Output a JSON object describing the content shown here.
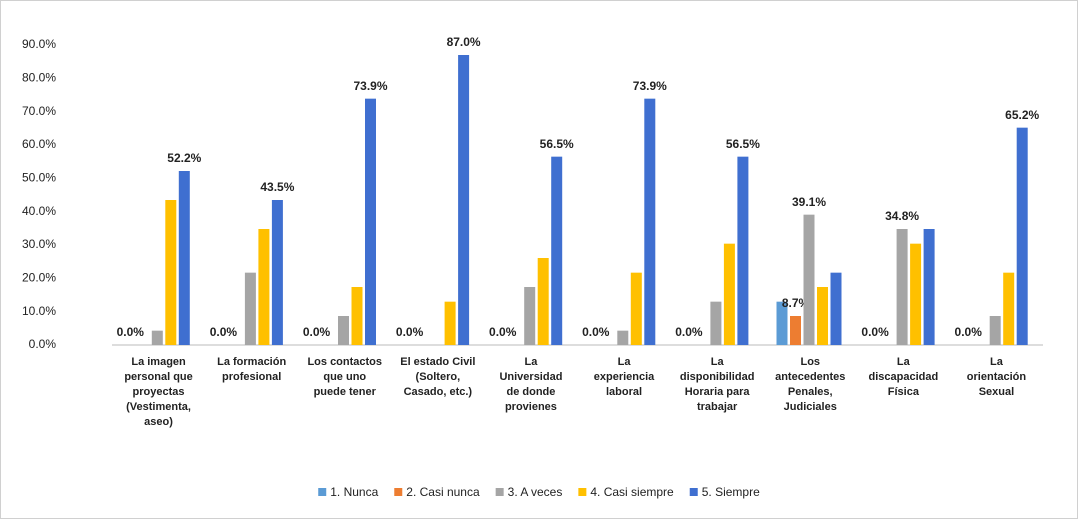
{
  "chart_data": {
    "type": "bar",
    "categories": [
      "La imagen\npersonal que\nproyectas\n(Vestimenta,\naseo)",
      "La formación\nprofesional",
      "Los contactos\nque uno\npuede tener",
      "El estado Civil\n(Soltero,\nCasado, etc.)",
      "La\nUniversidad\nde donde\nprovienes",
      "La\nexperiencia\nlaboral",
      "La\ndisponibilidad\nHoraria para\ntrabajar",
      "Los\nantecedentes\nPenales,\nJudiciales",
      "La\ndiscapacidad\nFísica",
      "La\norientación\nSexual"
    ],
    "series": [
      {
        "name": "1. Nunca",
        "color": "#5b9bd5",
        "values": [
          0,
          0,
          0,
          0,
          0,
          0,
          0,
          13.0,
          0,
          0
        ],
        "value_labels": [
          "0.0%",
          "0.0%",
          "0.0%",
          "0.0%",
          "0.0%",
          "0.0%",
          "0.0%",
          null,
          "0.0%",
          "0.0%"
        ]
      },
      {
        "name": "2. Casi nunca",
        "color": "#ed7d31",
        "values": [
          0,
          0,
          0,
          0,
          0,
          0,
          0,
          8.7,
          0,
          0
        ],
        "value_labels": [
          null,
          null,
          null,
          null,
          null,
          null,
          null,
          "8.7%",
          null,
          null
        ]
      },
      {
        "name": "3. A veces",
        "color": "#a5a5a5",
        "values": [
          4.3,
          21.7,
          8.7,
          0,
          17.4,
          4.3,
          13.0,
          39.1,
          34.8,
          8.7
        ],
        "value_labels": [
          null,
          null,
          null,
          null,
          null,
          null,
          null,
          "39.1%",
          "34.8%",
          null
        ]
      },
      {
        "name": "4. Casi siempre",
        "color": "#ffc000",
        "values": [
          43.5,
          34.8,
          17.4,
          13.0,
          26.1,
          21.7,
          30.4,
          17.4,
          30.4,
          21.7
        ]
      },
      {
        "name": "5. Siempre",
        "color": "#3f6fd0",
        "values": [
          52.2,
          43.5,
          73.9,
          87.0,
          56.5,
          73.9,
          56.5,
          21.7,
          34.8,
          65.2
        ],
        "value_labels": [
          "52.2%",
          "43.5%",
          "73.9%",
          "87.0%",
          "56.5%",
          "73.9%",
          "56.5%",
          null,
          null,
          "65.2%"
        ]
      }
    ],
    "ylim": [
      0,
      90
    ],
    "yticks": [
      {
        "value": 0,
        "label": "0.0%"
      },
      {
        "value": 10,
        "label": "10.0%"
      },
      {
        "value": 20,
        "label": "20.0%"
      },
      {
        "value": 30,
        "label": "30.0%"
      },
      {
        "value": 40,
        "label": "40.0%"
      },
      {
        "value": 50,
        "label": "50.0%"
      },
      {
        "value": 60,
        "label": "60.0%"
      },
      {
        "value": 70,
        "label": "70.0%"
      },
      {
        "value": 80,
        "label": "80.0%"
      },
      {
        "value": 90,
        "label": "90.0%"
      }
    ],
    "grid": false
  }
}
